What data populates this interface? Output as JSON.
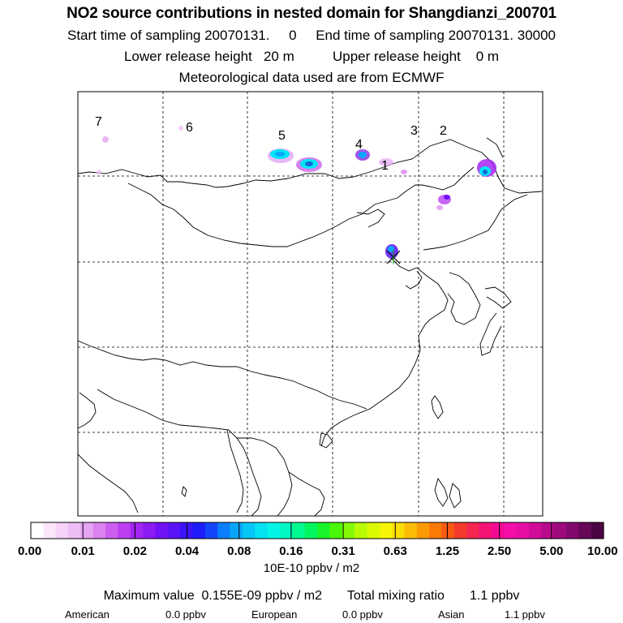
{
  "title": "NO2 source contributions in nested domain for Shangdianzi_200701",
  "sampling": {
    "start_label": "Start time of sampling 20070131.",
    "start_value": "0",
    "end_label": "End time of sampling 20070131. 30000"
  },
  "release": {
    "lower_label": "Lower release height",
    "lower_value": "20 m",
    "upper_label": "Upper release height",
    "upper_value": "0 m"
  },
  "met_line": "Meteorological data used are from ECMWF",
  "colorbar": {
    "tick_labels": [
      "0.00",
      "0.01",
      "0.02",
      "0.04",
      "0.08",
      "0.16",
      "0.31",
      "0.63",
      "1.25",
      "2.50",
      "5.00",
      "10.00"
    ],
    "unit": "10E-10 ppbv / m2",
    "colors": [
      "#ffffff",
      "#fbe6fb",
      "#f6d2f8",
      "#efbdf5",
      "#e6a4f3",
      "#dc82f0",
      "#cc5ef0",
      "#bb3ff1",
      "#a426f3",
      "#8c1bf5",
      "#7011f6",
      "#5a13f9",
      "#3c14fb",
      "#1f1cfc",
      "#1246fc",
      "#0a7efc",
      "#08a6fb",
      "#05c6f5",
      "#04e2f1",
      "#03f5e8",
      "#00f9c4",
      "#00fa90",
      "#00f75d",
      "#19f52a",
      "#4af70a",
      "#84fa05",
      "#b8fb04",
      "#dcf904",
      "#f6f505",
      "#fbde05",
      "#fbbd04",
      "#fb9b03",
      "#fb7905",
      "#f85a14",
      "#f53b2b",
      "#f52650",
      "#f51476",
      "#f50a94",
      "#f50ea8",
      "#e70ea6",
      "#d10c99",
      "#b80a8b",
      "#9e0a7c",
      "#83096d",
      "#660759",
      "#4b0545"
    ]
  },
  "stats": {
    "max_label": "Maximum value",
    "max_value": "0.155E-09 ppbv / m2",
    "total_label": "Total mixing ratio",
    "total_value": "1.1 ppbv",
    "regions": [
      {
        "name": "American",
        "value": "0.0 ppbv"
      },
      {
        "name": "European",
        "value": "0.0 ppbv"
      },
      {
        "name": "Asian",
        "value": "1.1 ppbv"
      }
    ]
  },
  "map": {
    "region_numbers": [
      "1",
      "2",
      "3",
      "4",
      "5",
      "6",
      "7"
    ],
    "station_marker": "Shangdianzi",
    "plume_colors": {
      "low": "#d88af0",
      "mid": "#8a2be2",
      "high": "#00e5f5",
      "core": "#1565d8"
    }
  }
}
